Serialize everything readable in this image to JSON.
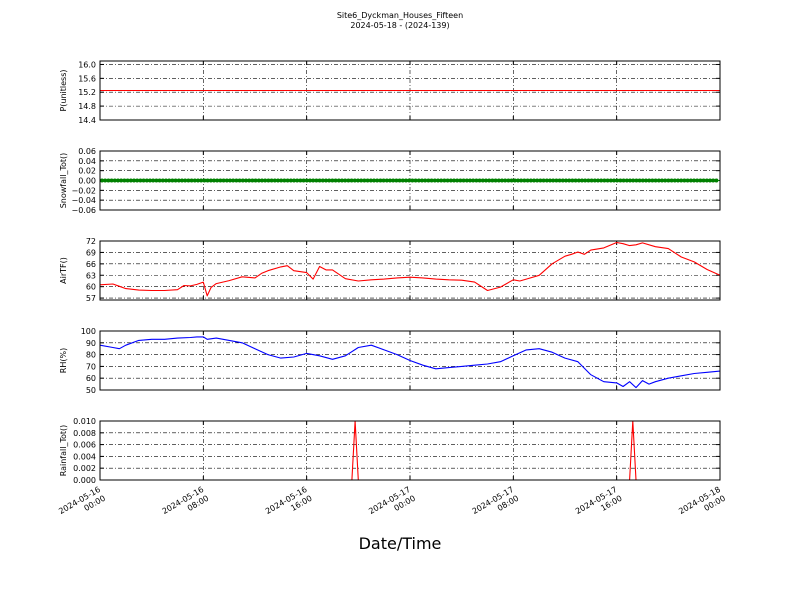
{
  "title": "Site6_Dyckman_Houses_Fifteen",
  "subtitle": "2024-05-18 - (2024-139)",
  "xlabel": "Date/Time",
  "x_ticks": [
    [
      "2024-05-16",
      "00:00"
    ],
    [
      "2024-05-16",
      "08:00"
    ],
    [
      "2024-05-16",
      "16:00"
    ],
    [
      "2024-05-17",
      "00:00"
    ],
    [
      "2024-05-17",
      "08:00"
    ],
    [
      "2024-05-17",
      "16:00"
    ],
    [
      "2024-05-18",
      "00:00"
    ]
  ],
  "chart_data": [
    {
      "type": "line",
      "ylabel": "P(unitless)",
      "ylim": [
        14.4,
        16.1
      ],
      "yticks": [
        "16.0",
        "15.6",
        "15.2",
        "14.8",
        "14.4"
      ],
      "ytick_values": [
        16.0,
        15.6,
        15.2,
        14.8,
        14.4
      ],
      "x_hours": [
        0,
        48
      ],
      "series": [
        {
          "color": "#ff0000",
          "marker": "none",
          "values": [
            15.25,
            15.25
          ]
        }
      ]
    },
    {
      "type": "line",
      "ylabel": "Snowfall_Tot()",
      "ylim": [
        -0.06,
        0.06
      ],
      "yticks": [
        "0.06",
        "0.04",
        "0.02",
        "0.00",
        "−0.02",
        "−0.04",
        "−0.06"
      ],
      "ytick_values": [
        0.06,
        0.04,
        0.02,
        0.0,
        -0.02,
        -0.04,
        -0.06
      ],
      "x_hours": [
        0,
        48
      ],
      "series": [
        {
          "color": "#008000",
          "marker": "dots",
          "values": [
            0.0,
            0.0
          ]
        }
      ]
    },
    {
      "type": "line",
      "ylabel": "AirTF()",
      "ylim": [
        56.5,
        72
      ],
      "yticks": [
        "72",
        "69",
        "66",
        "63",
        "60",
        "57"
      ],
      "ytick_values": [
        72,
        69,
        66,
        63,
        60,
        57
      ],
      "x_hours": [
        0,
        1,
        1.5,
        2,
        2.5,
        3,
        4,
        5,
        6,
        6.5,
        7,
        7.5,
        8,
        8.3,
        8.6,
        9,
        10,
        11,
        12,
        12.5,
        13,
        14,
        14.5,
        15,
        16,
        16.5,
        17,
        17.5,
        18,
        19,
        20,
        21,
        22,
        23,
        24,
        25,
        26,
        27,
        28,
        29,
        30,
        31,
        32,
        32.5,
        33,
        34,
        35,
        36,
        36.5,
        37,
        37.5,
        38,
        39,
        40,
        40.5,
        41,
        41.5,
        42,
        43,
        44,
        45,
        46,
        47,
        48
      ],
      "series": [
        {
          "color": "#ff0000",
          "marker": "none",
          "values": [
            60.5,
            60.7,
            60.1,
            59.5,
            59.3,
            59.1,
            59.0,
            59.0,
            59.2,
            60.3,
            60.2,
            60.6,
            61.2,
            57.6,
            59.8,
            60.8,
            61.6,
            62.6,
            62.3,
            63.5,
            64.2,
            65.2,
            65.5,
            64.2,
            63.7,
            62.0,
            65.3,
            64.4,
            64.4,
            62.1,
            61.5,
            61.8,
            62.0,
            62.3,
            62.5,
            62.3,
            62.0,
            61.8,
            61.7,
            61.2,
            59.0,
            59.9,
            61.8,
            61.5,
            62.0,
            63.0,
            66.0,
            68.0,
            68.5,
            69.1,
            68.5,
            69.6,
            70.2,
            71.6,
            71.3,
            70.8,
            71.0,
            71.5,
            70.5,
            70.0,
            67.8,
            66.5,
            64.5,
            63.0
          ]
        }
      ]
    },
    {
      "type": "line",
      "ylabel": "RH(%)",
      "ylim": [
        50,
        100
      ],
      "yticks": [
        "100",
        "90",
        "80",
        "70",
        "60",
        "50"
      ],
      "ytick_values": [
        100,
        90,
        80,
        70,
        60,
        50
      ],
      "x_hours": [
        0,
        1,
        1.5,
        2,
        3,
        4,
        5,
        6,
        7,
        7.5,
        8,
        8.3,
        9,
        10,
        11,
        12,
        13,
        14,
        15,
        16,
        17,
        18,
        19,
        20,
        21,
        22,
        23,
        24,
        25,
        26,
        27,
        28,
        29,
        30,
        31,
        32,
        33,
        34,
        35,
        36,
        37,
        38,
        39,
        40,
        40.5,
        41,
        41.5,
        42,
        42.5,
        43,
        44,
        45,
        46,
        47,
        48
      ],
      "series": [
        {
          "color": "#0000ff",
          "marker": "none",
          "values": [
            88,
            86,
            85,
            88,
            92,
            93,
            93,
            94,
            94.5,
            95,
            95,
            93,
            94,
            92,
            90,
            85,
            80,
            77,
            78,
            81,
            79,
            76,
            79,
            86,
            88,
            84,
            80,
            75,
            71,
            68,
            69,
            70,
            71,
            72,
            74,
            79,
            84,
            85,
            82,
            77,
            74,
            63,
            57,
            56,
            53,
            57,
            52,
            58,
            55,
            57,
            60,
            62,
            64,
            65,
            66
          ]
        }
      ]
    },
    {
      "type": "line",
      "ylabel": "Rainfall_Tot()",
      "ylim": [
        0,
        0.01
      ],
      "yticks": [
        "0.010",
        "0.008",
        "0.006",
        "0.004",
        "0.002",
        "0.000"
      ],
      "ytick_values": [
        0.01,
        0.008,
        0.006,
        0.004,
        0.002,
        0.0
      ],
      "x_hours": [
        0,
        19.5,
        19.75,
        20.0,
        41.0,
        41.25,
        41.5,
        48
      ],
      "series": [
        {
          "color": "#ff0000",
          "marker": "none",
          "values": [
            0,
            0,
            0.01,
            0,
            0,
            0.01,
            0,
            0
          ]
        }
      ]
    }
  ]
}
